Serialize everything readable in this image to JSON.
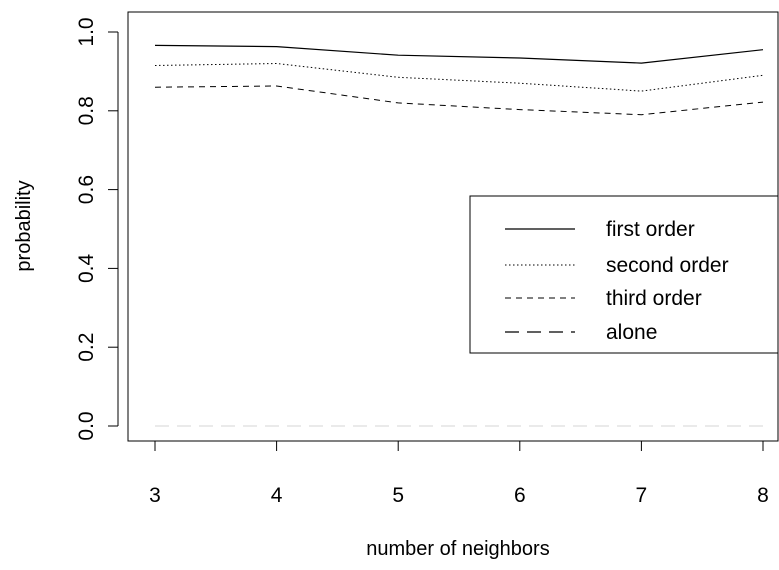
{
  "chart_data": {
    "type": "line",
    "xlabel": "number of neighbors",
    "ylabel": "probability",
    "x": [
      3,
      4,
      5,
      6,
      7,
      8
    ],
    "xlim": [
      3,
      8
    ],
    "ylim": [
      0,
      1
    ],
    "xticks": [
      "3",
      "4",
      "5",
      "6",
      "7",
      "8"
    ],
    "yticks": [
      "0.0",
      "0.2",
      "0.4",
      "0.6",
      "0.8",
      "1.0"
    ],
    "grid": false,
    "legend_position": "right",
    "series": [
      {
        "name": "first order",
        "style": "solid",
        "color": "#000000",
        "values": [
          0.966,
          0.963,
          0.941,
          0.934,
          0.921,
          0.955
        ]
      },
      {
        "name": "second order",
        "style": "dotted",
        "color": "#000000",
        "values": [
          0.915,
          0.92,
          0.885,
          0.87,
          0.85,
          0.89
        ]
      },
      {
        "name": "third order",
        "style": "dashed",
        "color": "#000000",
        "values": [
          0.86,
          0.863,
          0.82,
          0.803,
          0.79,
          0.822
        ]
      },
      {
        "name": "alone",
        "style": "longdash",
        "color": "#000000",
        "values": [
          0.0,
          0.0,
          0.0,
          0.0,
          0.0,
          0.0
        ]
      }
    ]
  }
}
